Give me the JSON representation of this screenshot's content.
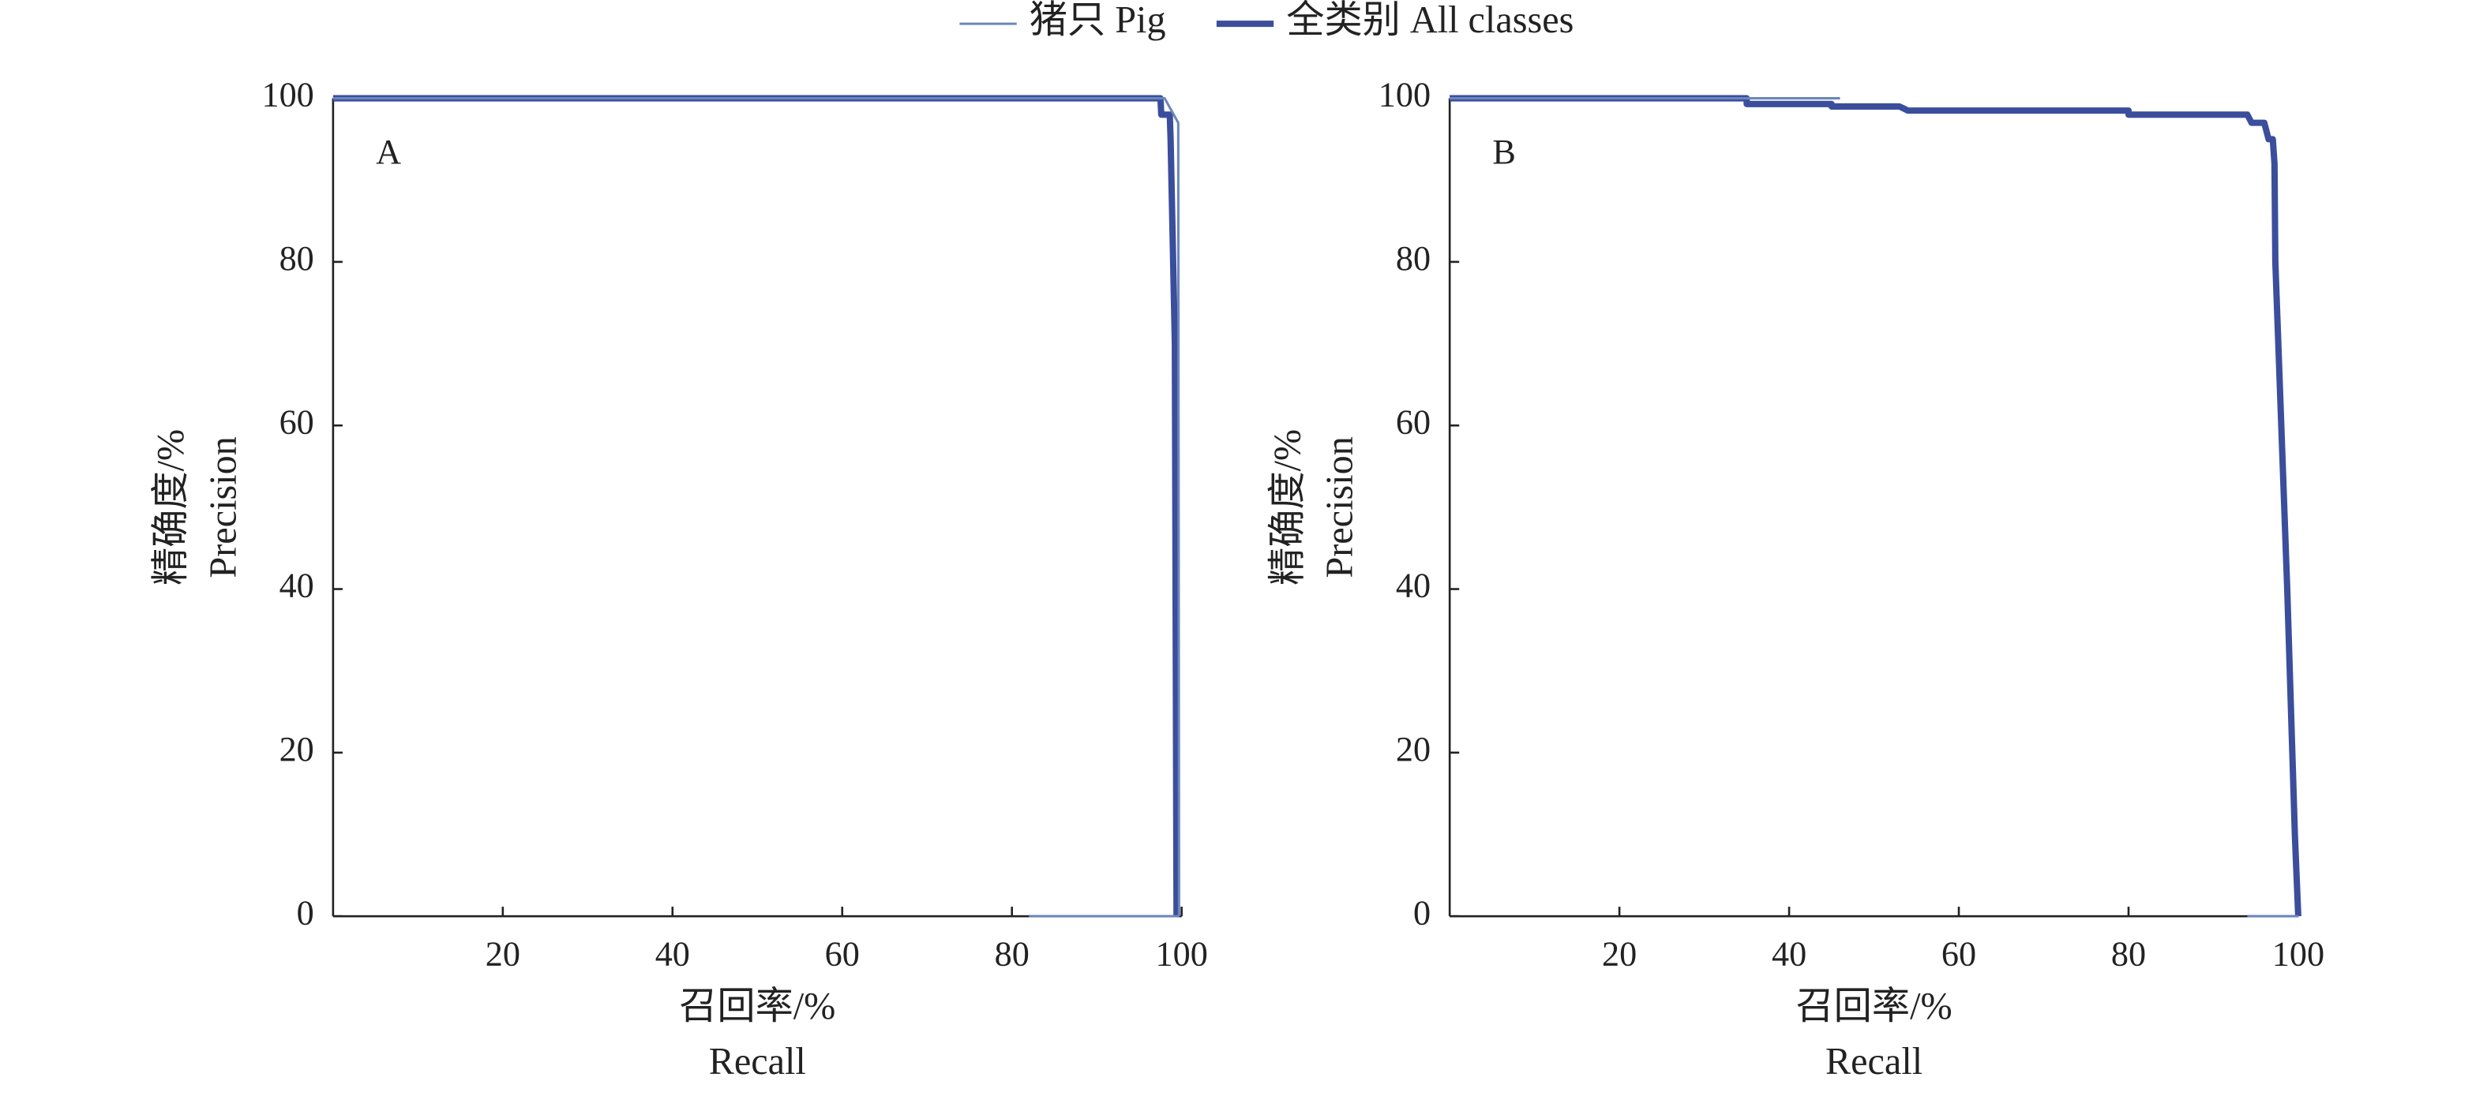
{
  "chart_data": [
    {
      "type": "line",
      "panel_label": "A",
      "xlabel": [
        "召回率/%",
        "Recall"
      ],
      "ylabel": [
        "精确度/%",
        "Precision"
      ],
      "xlim": [
        0,
        100
      ],
      "ylim": [
        0,
        100
      ],
      "xticks": [
        20,
        40,
        60,
        80,
        100
      ],
      "yticks": [
        0,
        20,
        40,
        60,
        80,
        100
      ],
      "series": [
        {
          "name": "全类别 All classes",
          "color": "#3b4e9c",
          "line_width": 4,
          "x": [
            0,
            97.5,
            97.6,
            98.6,
            98.7,
            99.2,
            99.4
          ],
          "values": [
            100,
            100,
            98,
            98,
            95,
            70,
            0
          ]
        },
        {
          "name": "猪只 Pig",
          "color": "#6a86bd",
          "line_width": 1.5,
          "x": [
            0,
            98,
            99.6,
            99.7,
            null,
            82,
            99.7
          ],
          "values": [
            100,
            100,
            97,
            0,
            null,
            0,
            0
          ]
        }
      ]
    },
    {
      "type": "line",
      "panel_label": "B",
      "xlabel": [
        "召回率/%",
        "Recall"
      ],
      "ylabel": [
        "精确度/%",
        "Precision"
      ],
      "xlim": [
        0,
        100
      ],
      "ylim": [
        0,
        100
      ],
      "xticks": [
        20,
        40,
        60,
        80,
        100
      ],
      "yticks": [
        0,
        20,
        40,
        60,
        80,
        100
      ],
      "series": [
        {
          "color": "#3b4e9c",
          "line_width": 4,
          "x": [
            0,
            35,
            35,
            45,
            45,
            53,
            54,
            80,
            80,
            94,
            94.5,
            96,
            96.5,
            97,
            97.2,
            97.3,
            98,
            98.7,
            99.3,
            99.6,
            100
          ],
          "values": [
            100,
            100,
            99.3,
            99.3,
            99,
            99,
            98.5,
            98.5,
            98,
            98,
            97,
            97,
            95,
            95,
            92,
            80,
            60,
            40,
            20,
            10,
            0
          ]
        },
        {
          "color": "#6a86bd",
          "line_width": 1.5,
          "x": [
            0,
            46,
            null,
            94,
            100
          ],
          "values": [
            100,
            100,
            null,
            0,
            0
          ]
        }
      ]
    }
  ]
}
